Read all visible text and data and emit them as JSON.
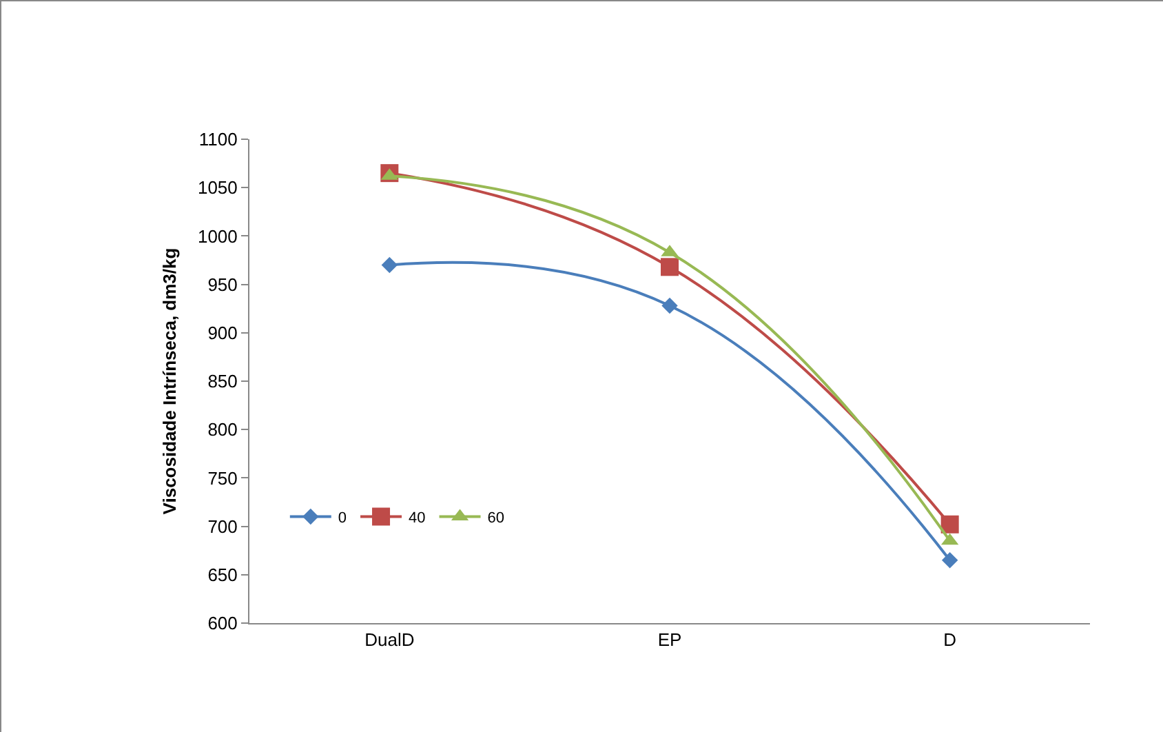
{
  "chart_data": {
    "type": "line",
    "ylabel": "Viscosidade Intrínseca, dm3/kg",
    "categories": [
      "DualD",
      "EP",
      "D"
    ],
    "series": [
      {
        "name": "0",
        "color": "#4a7ebb",
        "marker": "diamond",
        "values": [
          970,
          928,
          665
        ]
      },
      {
        "name": "40",
        "color": "#be4b48",
        "marker": "square",
        "values": [
          1065,
          968,
          702
        ]
      },
      {
        "name": "60",
        "color": "#98b954",
        "marker": "triangle",
        "values": [
          1062,
          983,
          685
        ]
      }
    ],
    "ylim": [
      600,
      1100
    ],
    "yticks": [
      600,
      650,
      700,
      750,
      800,
      850,
      900,
      950,
      1000,
      1050,
      1100
    ],
    "grid": false,
    "legend": "bottom left"
  }
}
